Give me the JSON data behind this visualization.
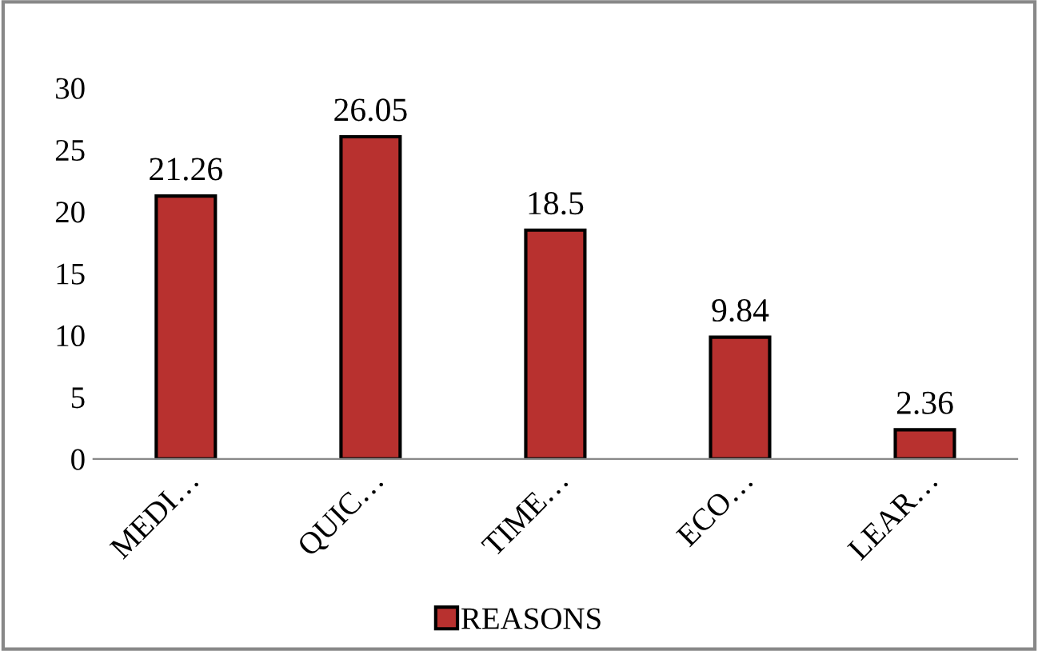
{
  "chart_data": {
    "type": "bar",
    "categories": [
      "MEDI…",
      "QUIC…",
      "TIME…",
      "ECO…",
      "LEAR…"
    ],
    "series": [
      {
        "name": "REASONS",
        "color": "#b8312f",
        "values": [
          21.26,
          26.05,
          18.5,
          9.84,
          2.36
        ]
      }
    ],
    "ylim": [
      0,
      30
    ],
    "yticks": [
      0,
      5,
      10,
      15,
      20,
      25,
      30
    ],
    "data_labels": true,
    "legend": "bottom",
    "grid": false
  }
}
